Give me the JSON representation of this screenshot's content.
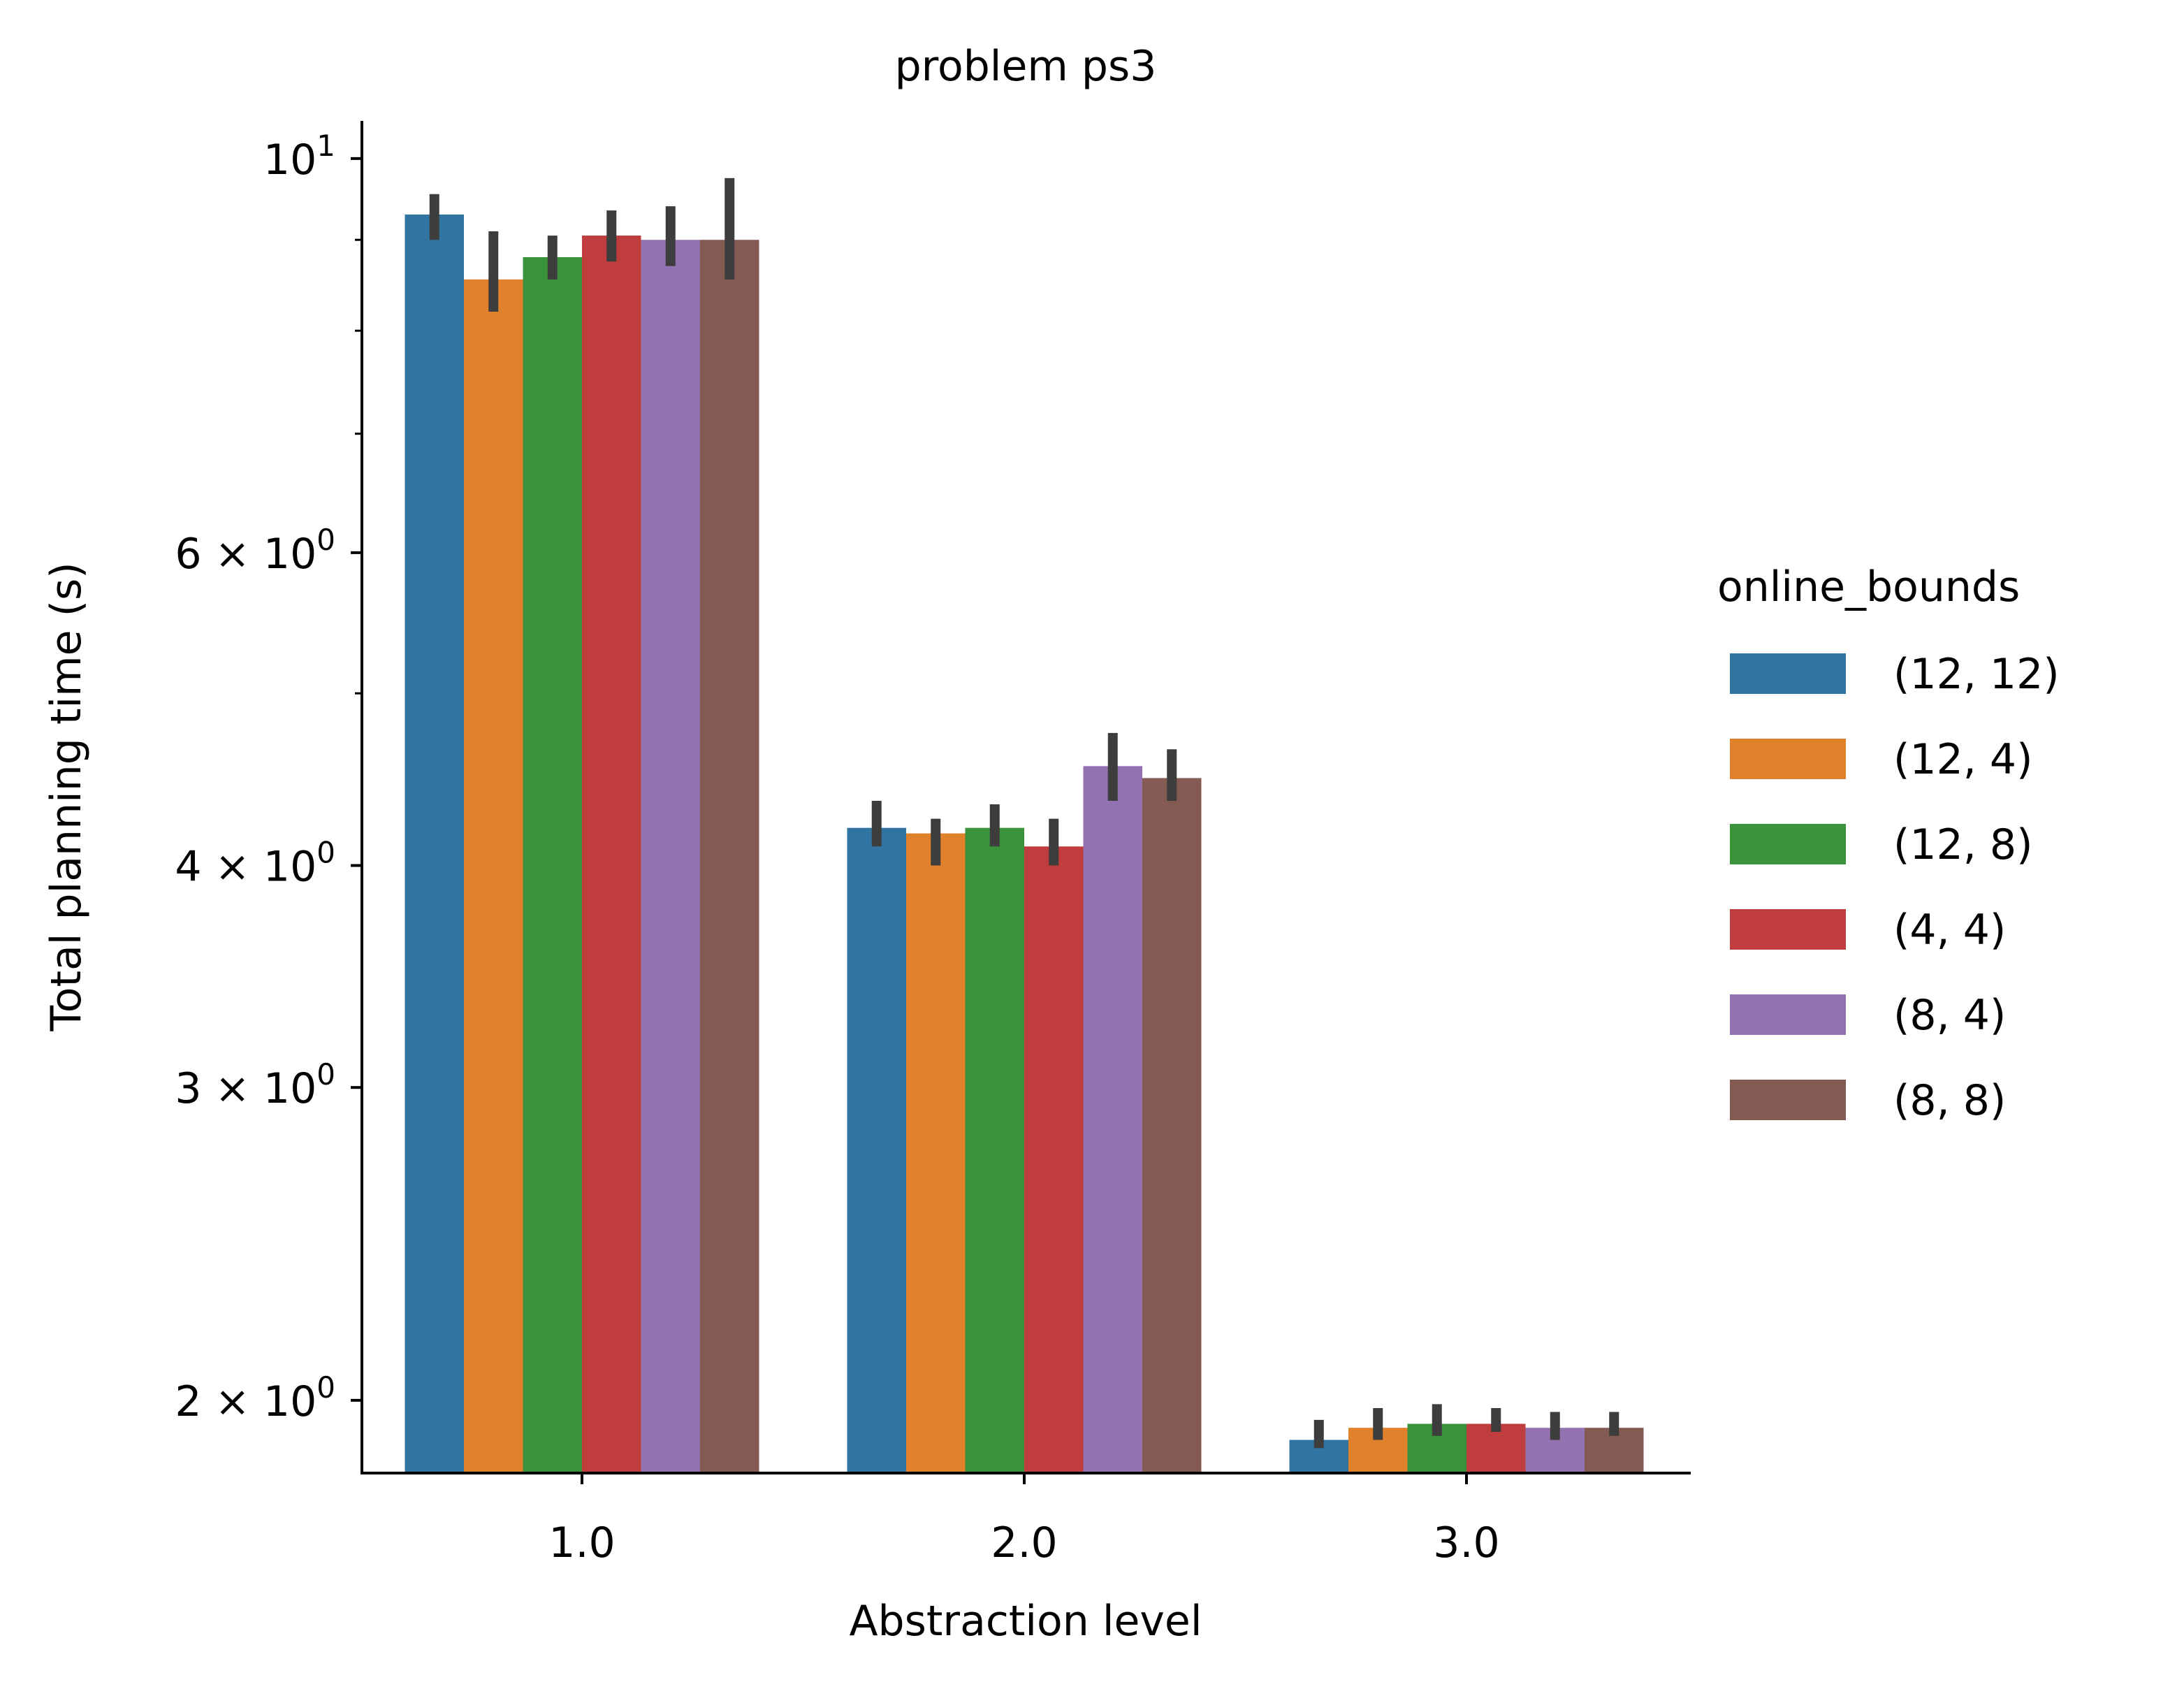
{
  "chart_data": {
    "type": "bar",
    "title": "problem ps3",
    "xlabel": "Abstraction level",
    "ylabel": "Total planning time (s)",
    "yscale": "log",
    "ylim": [
      1.82,
      10.5
    ],
    "categories": [
      "1.0",
      "2.0",
      "3.0"
    ],
    "yticks": [
      {
        "value": 10,
        "base": "10",
        "exp": "1",
        "mult": ""
      },
      {
        "value": 6,
        "base": "10",
        "exp": "0",
        "mult": "6 × "
      },
      {
        "value": 4,
        "base": "10",
        "exp": "0",
        "mult": "4 × "
      },
      {
        "value": 3,
        "base": "10",
        "exp": "0",
        "mult": "3 × "
      },
      {
        "value": 2,
        "base": "10",
        "exp": "0",
        "mult": "2 × "
      }
    ],
    "minor_yticks": [
      5,
      7,
      8,
      9
    ],
    "legend": {
      "title": "online_bounds",
      "placement": "right"
    },
    "series": [
      {
        "name": "(12, 12)",
        "color": "#3274a1",
        "values": [
          9.3,
          4.2,
          1.9
        ],
        "err_low": [
          9.0,
          4.1,
          1.88
        ],
        "err_high": [
          9.55,
          4.35,
          1.95
        ]
      },
      {
        "name": "(12, 4)",
        "color": "#e1812c",
        "values": [
          8.55,
          4.17,
          1.93
        ],
        "err_low": [
          8.2,
          4.0,
          1.9
        ],
        "err_high": [
          9.1,
          4.25,
          1.98
        ]
      },
      {
        "name": "(12, 8)",
        "color": "#3a923a",
        "values": [
          8.8,
          4.2,
          1.94
        ],
        "err_low": [
          8.55,
          4.1,
          1.91
        ],
        "err_high": [
          9.05,
          4.33,
          1.99
        ]
      },
      {
        "name": "(4, 4)",
        "color": "#c03d3e",
        "values": [
          9.05,
          4.1,
          1.94
        ],
        "err_low": [
          8.75,
          4.0,
          1.92
        ],
        "err_high": [
          9.35,
          4.25,
          1.98
        ]
      },
      {
        "name": "(8, 4)",
        "color": "#9372b2",
        "values": [
          9.0,
          4.55,
          1.93
        ],
        "err_low": [
          8.7,
          4.35,
          1.9
        ],
        "err_high": [
          9.4,
          4.75,
          1.97
        ]
      },
      {
        "name": "(8, 8)",
        "color": "#845b53",
        "values": [
          9.0,
          4.48,
          1.93
        ],
        "err_low": [
          8.55,
          4.35,
          1.91
        ],
        "err_high": [
          9.75,
          4.65,
          1.97
        ]
      }
    ]
  }
}
